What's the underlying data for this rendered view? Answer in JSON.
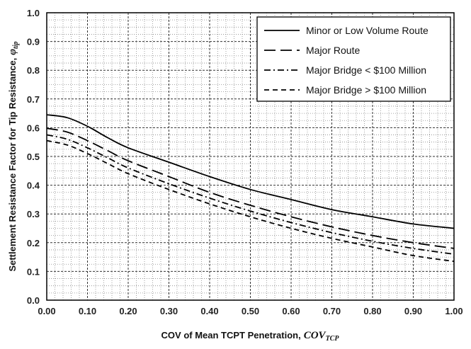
{
  "chart_data": {
    "type": "line",
    "xlabel": "COV of Mean TCPT Penetration,",
    "xlabel_symbol": "COV",
    "xlabel_subscript": "TCP",
    "ylabel": "Settlement Resistance Factor for Tip Resistance,",
    "ylabel_symbol": "φ",
    "ylabel_subscript": "tip",
    "xlim": [
      0,
      1
    ],
    "ylim": [
      0,
      1
    ],
    "x_ticks": [
      "0.00",
      "0.10",
      "0.20",
      "0.30",
      "0.40",
      "0.50",
      "0.60",
      "0.70",
      "0.80",
      "0.90",
      "1.00"
    ],
    "y_ticks": [
      "0.0",
      "0.1",
      "0.2",
      "0.3",
      "0.4",
      "0.5",
      "0.6",
      "0.7",
      "0.8",
      "0.9",
      "1.0"
    ],
    "grid": true,
    "legend_position": "top-right",
    "series": [
      {
        "name": "Minor or Low Volume Route",
        "style": "solid",
        "x": [
          0,
          0.05,
          0.1,
          0.15,
          0.2,
          0.3,
          0.4,
          0.5,
          0.6,
          0.7,
          0.8,
          0.9,
          1.0
        ],
        "y": [
          0.645,
          0.635,
          0.605,
          0.565,
          0.53,
          0.48,
          0.43,
          0.385,
          0.35,
          0.315,
          0.29,
          0.265,
          0.25
        ]
      },
      {
        "name": "Major Route",
        "style": "long-dash",
        "x": [
          0,
          0.05,
          0.1,
          0.15,
          0.2,
          0.3,
          0.4,
          0.5,
          0.6,
          0.7,
          0.8,
          0.9,
          1.0
        ],
        "y": [
          0.598,
          0.585,
          0.555,
          0.52,
          0.485,
          0.43,
          0.375,
          0.33,
          0.29,
          0.255,
          0.225,
          0.2,
          0.18
        ]
      },
      {
        "name": "Major Bridge < $100 Million",
        "style": "dash-dot",
        "x": [
          0,
          0.05,
          0.1,
          0.15,
          0.2,
          0.3,
          0.4,
          0.5,
          0.6,
          0.7,
          0.8,
          0.9,
          1.0
        ],
        "y": [
          0.575,
          0.56,
          0.53,
          0.495,
          0.46,
          0.405,
          0.355,
          0.31,
          0.27,
          0.235,
          0.205,
          0.18,
          0.16
        ]
      },
      {
        "name": "Major Bridge > $100 Million",
        "style": "short-dash",
        "x": [
          0,
          0.05,
          0.1,
          0.15,
          0.2,
          0.3,
          0.4,
          0.5,
          0.6,
          0.7,
          0.8,
          0.9,
          1.0
        ],
        "y": [
          0.555,
          0.54,
          0.51,
          0.475,
          0.44,
          0.385,
          0.335,
          0.29,
          0.25,
          0.215,
          0.185,
          0.155,
          0.135
        ]
      }
    ]
  }
}
